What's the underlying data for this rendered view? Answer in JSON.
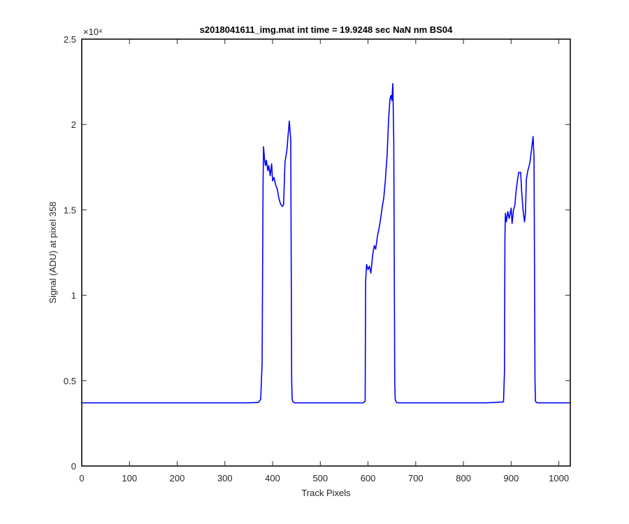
{
  "chart_data": {
    "type": "line",
    "title": "s2018041611_img.mat int time = 19.9248 sec  NaN nm BS04",
    "xlabel": "Track Pixels",
    "ylabel": "Signal (ADU) at pixel 358",
    "xlim": [
      0,
      1024
    ],
    "ylim": [
      0,
      25000
    ],
    "y_exponent_label": "×10⁴",
    "x_ticks": [
      0,
      100,
      200,
      300,
      400,
      500,
      600,
      700,
      800,
      900,
      1000
    ],
    "x_tick_labels": [
      "0",
      "100",
      "200",
      "300",
      "400",
      "500",
      "600",
      "700",
      "800",
      "900",
      "1000"
    ],
    "y_ticks": [
      0,
      5000,
      10000,
      15000,
      20000,
      25000
    ],
    "y_tick_labels": [
      "0",
      "0.5",
      "1",
      "1.5",
      "2",
      "2.5"
    ],
    "grid": false,
    "series": [
      {
        "color": "#0000ff",
        "x": [
          0,
          50,
          100,
          150,
          200,
          250,
          300,
          350,
          370,
          375,
          378,
          380,
          381,
          383,
          385,
          387,
          390,
          392,
          395,
          398,
          400,
          403,
          406,
          410,
          413,
          416,
          420,
          423,
          426,
          430,
          432,
          435,
          438,
          440,
          441,
          443,
          446,
          450,
          500,
          550,
          590,
          594,
          595,
          597,
          600,
          603,
          606,
          610,
          613,
          616,
          620,
          623,
          626,
          630,
          633,
          636,
          640,
          643,
          646,
          648,
          650,
          652,
          654,
          656,
          657,
          659,
          662,
          670,
          700,
          750,
          800,
          850,
          884,
          886,
          887,
          888,
          890,
          893,
          896,
          900,
          902,
          905,
          908,
          910,
          913,
          916,
          920,
          922,
          925,
          928,
          930,
          932,
          935,
          938,
          940,
          943,
          946,
          948,
          950,
          951,
          953,
          956,
          960,
          1000,
          1024
        ],
        "y": [
          3700,
          3700,
          3700,
          3700,
          3700,
          3700,
          3700,
          3700,
          3720,
          3900,
          6000,
          16500,
          18700,
          18000,
          17600,
          17900,
          17300,
          17600,
          17000,
          17700,
          16700,
          16900,
          16500,
          16200,
          15700,
          15400,
          15200,
          15300,
          17800,
          18500,
          19200,
          20200,
          19100,
          5000,
          3900,
          3750,
          3700,
          3700,
          3700,
          3700,
          3700,
          3800,
          10800,
          11800,
          11500,
          11700,
          11300,
          12400,
          12900,
          12700,
          13500,
          13900,
          14400,
          15200,
          15700,
          16600,
          18200,
          20200,
          21500,
          21700,
          21400,
          22400,
          19000,
          5000,
          3900,
          3750,
          3700,
          3700,
          3700,
          3700,
          3700,
          3700,
          3750,
          5500,
          13400,
          14800,
          14300,
          14900,
          14500,
          15100,
          14200,
          15000,
          15300,
          16000,
          16700,
          17200,
          17200,
          16100,
          15000,
          14300,
          14800,
          16800,
          17300,
          17600,
          17900,
          18600,
          19300,
          18000,
          5000,
          3800,
          3720,
          3700,
          3700,
          3700,
          3700
        ]
      }
    ]
  }
}
